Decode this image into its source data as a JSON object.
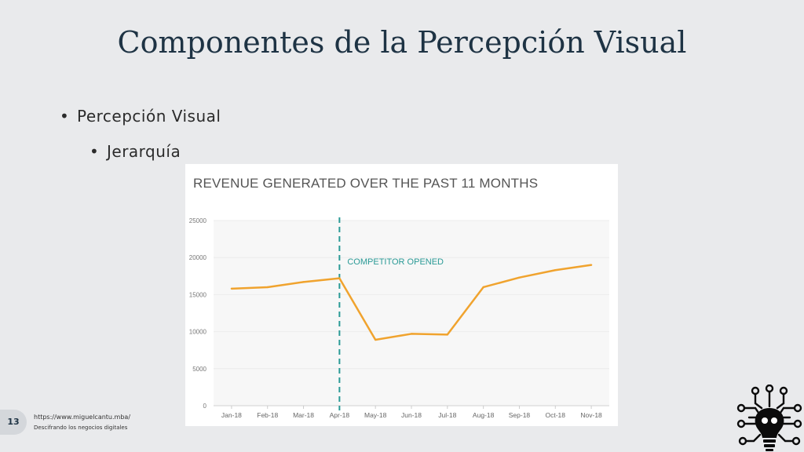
{
  "slide": {
    "title": "Componentes de la Percepción Visual",
    "bullets": [
      "Percepción Visual",
      "Jerarquía"
    ],
    "page_number": "13",
    "footer_url": "https://www.miguelcantu.mba/",
    "footer_tagline": "Descifrando los negocios digitales"
  },
  "chart_data": {
    "type": "line",
    "title": "REVENUE GENERATED OVER THE PAST 11 MONTHS",
    "categories": [
      "Jan-18",
      "Feb-18",
      "Mar-18",
      "Apr-18",
      "May-18",
      "Jun-18",
      "Jul-18",
      "Aug-18",
      "Sep-18",
      "Oct-18",
      "Nov-18"
    ],
    "values": [
      15800,
      16000,
      16700,
      17200,
      8900,
      9700,
      9600,
      16000,
      17300,
      18300,
      19000
    ],
    "yticks": [
      0,
      5000,
      10000,
      15000,
      20000,
      25000
    ],
    "ylim": [
      0,
      25000
    ],
    "line_color": "#f0a32e",
    "annotation": {
      "label": "COMPETITOR OPENED",
      "at_category": "Apr-18",
      "color": "#2a9a96"
    },
    "grid": "horizontal",
    "legend": "none"
  }
}
